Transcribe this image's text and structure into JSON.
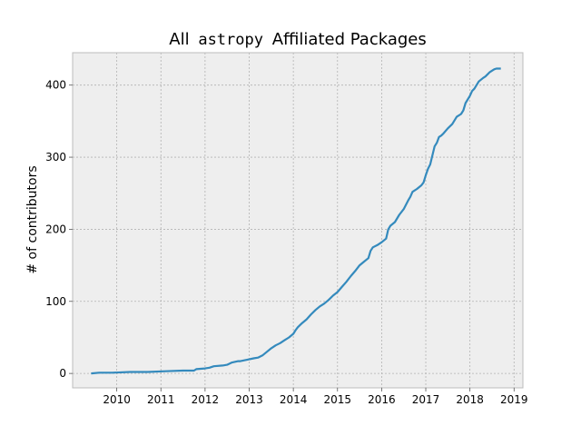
{
  "chart_data": {
    "type": "line",
    "title": {
      "prefix": "All",
      "mono": "astropy",
      "suffix": "Affiliated Packages"
    },
    "xlabel": "",
    "ylabel": "# of contributors",
    "xlim": [
      2009.0,
      2019.2
    ],
    "ylim": [
      -20,
      445
    ],
    "xticks": [
      2010,
      2011,
      2012,
      2013,
      2014,
      2015,
      2016,
      2017,
      2018,
      2019
    ],
    "yticks": [
      0,
      100,
      200,
      300,
      400
    ],
    "grid": true,
    "line_color": "#348abd",
    "background_color": "#eeeeee",
    "series": [
      {
        "x": [
          2009.42,
          2009.6,
          2009.9,
          2010.3,
          2010.7,
          2011.1,
          2011.5,
          2011.75,
          2011.8,
          2012.0,
          2012.1,
          2012.2,
          2012.4,
          2012.5,
          2012.6,
          2012.75,
          2012.8,
          2012.95,
          2013.1,
          2013.2,
          2013.3,
          2013.4,
          2013.5,
          2013.6,
          2013.7,
          2013.8,
          2013.9,
          2014.0,
          2014.05,
          2014.1,
          2014.2,
          2014.3,
          2014.4,
          2014.5,
          2014.6,
          2014.7,
          2014.8,
          2014.9,
          2015.0,
          2015.1,
          2015.2,
          2015.3,
          2015.4,
          2015.5,
          2015.6,
          2015.7,
          2015.75,
          2015.8,
          2015.9,
          2016.0,
          2016.1,
          2016.15,
          2016.2,
          2016.3,
          2016.4,
          2016.5,
          2016.6,
          2016.65,
          2016.7,
          2016.8,
          2016.9,
          2016.95,
          2017.0,
          2017.05,
          2017.1,
          2017.2,
          2017.25,
          2017.3,
          2017.35,
          2017.4,
          2017.5,
          2017.6,
          2017.7,
          2017.8,
          2017.85,
          2017.9,
          2018.0,
          2018.05,
          2018.1,
          2018.2,
          2018.3,
          2018.35,
          2018.4,
          2018.45,
          2018.5,
          2018.55,
          2018.6,
          2018.7
        ],
        "y": [
          0,
          1,
          1,
          2,
          2,
          3,
          4,
          4,
          6,
          7,
          8,
          10,
          11,
          12,
          15,
          17,
          17,
          19,
          21,
          22,
          25,
          30,
          35,
          39,
          42,
          46,
          50,
          55,
          60,
          64,
          70,
          75,
          82,
          88,
          93,
          97,
          102,
          108,
          113,
          120,
          127,
          135,
          142,
          150,
          155,
          160,
          170,
          175,
          178,
          182,
          187,
          200,
          205,
          210,
          220,
          228,
          240,
          245,
          252,
          256,
          261,
          265,
          275,
          284,
          290,
          315,
          320,
          328,
          330,
          333,
          340,
          346,
          356,
          360,
          365,
          375,
          385,
          392,
          395,
          405,
          410,
          412,
          415,
          418,
          420,
          422,
          423,
          423
        ]
      }
    ]
  }
}
